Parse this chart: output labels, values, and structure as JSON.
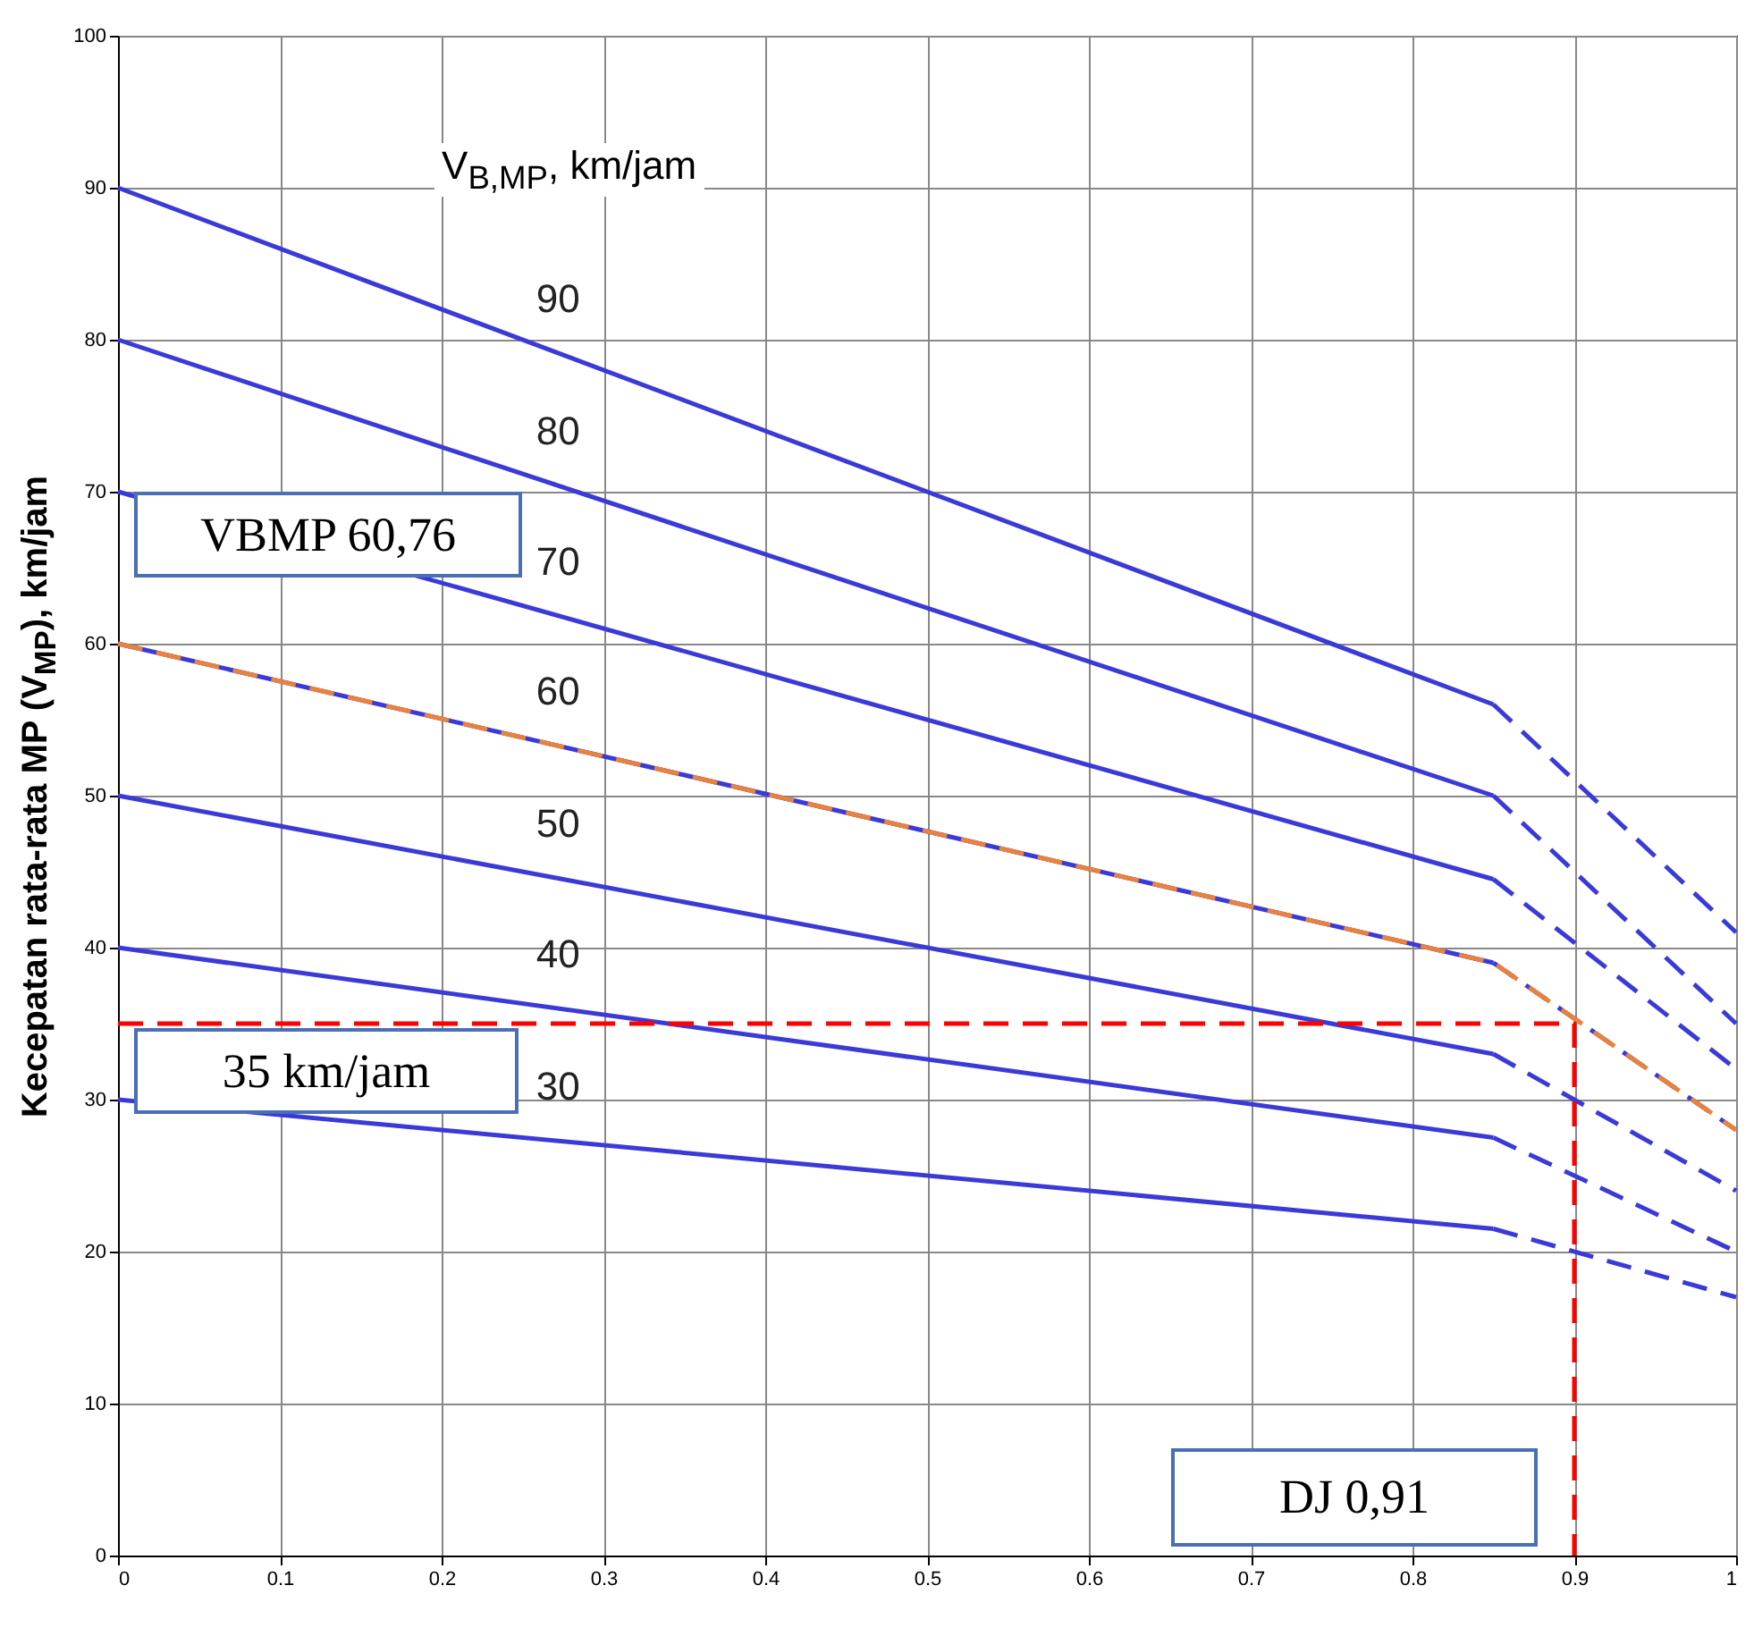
{
  "chart_data": {
    "type": "line",
    "ylabel": "Kecepatan rata-rata MP (V$_{MP}$), km/jam",
    "legend_title": "V$_{B,MP}$, km/jam",
    "xlim": [
      0,
      1
    ],
    "xticks": [
      0,
      0.1,
      0.2,
      0.3,
      0.4,
      0.5,
      0.6,
      0.7,
      0.8,
      0.9,
      1
    ],
    "ylim": [
      0,
      100
    ],
    "yticks": [
      0,
      10,
      20,
      30,
      40,
      50,
      60,
      70,
      80,
      90,
      100
    ],
    "grid": true,
    "legend": false,
    "marker": "none",
    "annotations": [
      "VBMP 60,76",
      "35 km/jam",
      "DJ 0,91"
    ],
    "series": [
      {
        "name": "90",
        "color": "#3a3ad8",
        "x": [
          0,
          0.85
        ],
        "values": [
          90,
          56
        ],
        "line_style": "solid"
      },
      {
        "name": "80",
        "color": "#3a3ad8",
        "x": [
          0,
          0.85
        ],
        "values": [
          80,
          50
        ],
        "line_style": "solid"
      },
      {
        "name": "70",
        "color": "#3a3ad8",
        "x": [
          0,
          0.85
        ],
        "values": [
          70,
          44.5
        ],
        "line_style": "solid"
      },
      {
        "name": "60",
        "color": "#3a3ad8",
        "x": [
          0,
          0.85
        ],
        "values": [
          60,
          39
        ],
        "line_style": "solid"
      },
      {
        "name": "50",
        "color": "#3a3ad8",
        "x": [
          0,
          0.85
        ],
        "values": [
          50,
          33
        ],
        "line_style": "solid"
      },
      {
        "name": "40",
        "color": "#3a3ad8",
        "x": [
          0,
          0.85
        ],
        "values": [
          40,
          27.5
        ],
        "line_style": "solid"
      },
      {
        "name": "30",
        "color": "#3a3ad8",
        "x": [
          0,
          0.85
        ],
        "values": [
          30,
          21.5
        ],
        "line_style": "solid"
      },
      {
        "color": "#3a3ad8",
        "x": [
          0.85,
          1
        ],
        "values": [
          56,
          41
        ],
        "line_style": "dashed"
      },
      {
        "color": "#3a3ad8",
        "x": [
          0.85,
          1
        ],
        "values": [
          50,
          35
        ],
        "line_style": "dashed"
      },
      {
        "color": "#3a3ad8",
        "x": [
          0.85,
          1
        ],
        "values": [
          44.5,
          32
        ],
        "line_style": "dashed"
      },
      {
        "color": "#3a3ad8",
        "x": [
          0.85,
          1
        ],
        "values": [
          39,
          28
        ],
        "line_style": "dashed"
      },
      {
        "color": "#3a3ad8",
        "x": [
          0.85,
          1
        ],
        "values": [
          33,
          24
        ],
        "line_style": "dashed"
      },
      {
        "color": "#3a3ad8",
        "x": [
          0.85,
          1
        ],
        "values": [
          27.5,
          20
        ],
        "line_style": "dashed"
      },
      {
        "color": "#3a3ad8",
        "x": [
          0.85,
          1
        ],
        "values": [
          21.5,
          17
        ],
        "line_style": "dashed"
      },
      {
        "color": "#e8823c",
        "x": [
          0,
          0.85,
          1
        ],
        "values": [
          60,
          39,
          28
        ],
        "line_style": "dashed"
      },
      {
        "color": "#ff0000",
        "x": [
          0,
          0.9,
          0.9
        ],
        "values": [
          35,
          35,
          0
        ],
        "line_style": "dashed"
      }
    ]
  }
}
